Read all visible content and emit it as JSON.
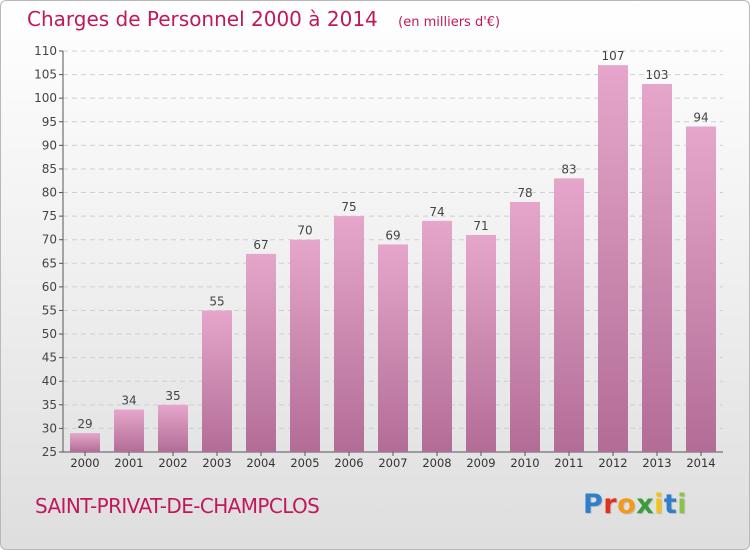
{
  "title": "Charges de Personnel 2000 à 2014",
  "unit_note": "(en milliers d'€)",
  "commune": "SAINT-PRIVAT-DE-CHAMPCLOS",
  "logo": {
    "text": "Proxiti",
    "letter_colors": [
      "#2e7ec9",
      "#e1301f",
      "#f29a1c",
      "#3a9c3a",
      "#f2c21b",
      "#2e7ec9",
      "#8bc34a"
    ]
  },
  "colors": {
    "accent": "#c2185b",
    "bar_top": "#e6a6cb",
    "bar_bottom": "#b26d96"
  },
  "chart_data": {
    "type": "bar",
    "categories": [
      "2000",
      "2001",
      "2002",
      "2003",
      "2004",
      "2005",
      "2006",
      "2007",
      "2008",
      "2009",
      "2010",
      "2011",
      "2012",
      "2013",
      "2014"
    ],
    "values": [
      29,
      34,
      35,
      55,
      67,
      70,
      75,
      69,
      74,
      71,
      78,
      83,
      107,
      103,
      94
    ],
    "title": "Charges de Personnel 2000 à 2014",
    "ylim": [
      25,
      110
    ],
    "yticks": [
      25,
      30,
      35,
      40,
      45,
      50,
      55,
      60,
      65,
      70,
      75,
      80,
      85,
      90,
      95,
      100,
      105,
      110
    ],
    "grid": true,
    "legend": "none"
  }
}
